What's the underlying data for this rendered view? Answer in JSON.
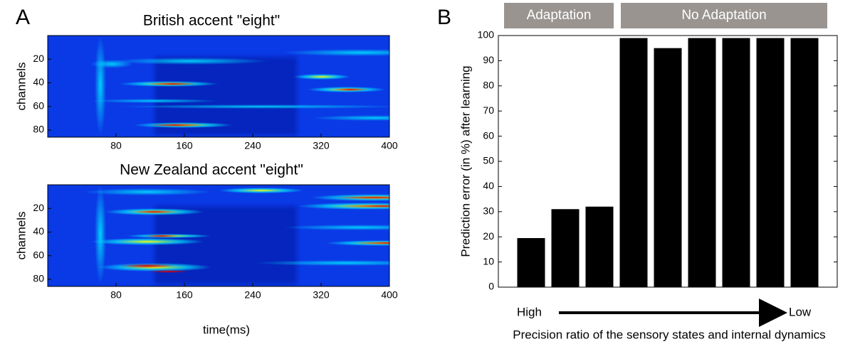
{
  "panel_labels": [
    "A",
    "B"
  ],
  "chart_data": [
    {
      "type": "heatmap",
      "title": "British accent \"eight\"",
      "ylabel": "channels",
      "xlim": [
        0,
        400
      ],
      "xticks": [
        80,
        160,
        240,
        320,
        400
      ],
      "ylim": [
        0,
        86
      ],
      "yticks": [
        20,
        40,
        60,
        80
      ],
      "y_inverted": true,
      "colormap": "jet"
    },
    {
      "type": "heatmap",
      "title": "New Zealand accent \"eight\"",
      "ylabel": "channels",
      "xlabel": "time(ms)",
      "xlim": [
        0,
        400
      ],
      "xticks": [
        80,
        160,
        240,
        320,
        400
      ],
      "ylim": [
        0,
        86
      ],
      "yticks": [
        20,
        40,
        60,
        80
      ],
      "y_inverted": true,
      "colormap": "jet"
    },
    {
      "type": "bar",
      "ylabel": "Prediction error (in %) after learning",
      "xlabel": "Precision ratio of the sensory states and internal dynamics",
      "categories": [
        null,
        null,
        null,
        null,
        null,
        null,
        null,
        null,
        null
      ],
      "values": [
        19.5,
        31,
        32,
        99,
        95,
        99,
        99,
        99,
        99
      ],
      "color": "#000000",
      "ylim": [
        0,
        100
      ],
      "yticks": [
        0,
        10,
        20,
        30,
        40,
        50,
        60,
        70,
        80,
        90,
        100
      ],
      "annotations": [
        "Adaptation",
        "No Adaptation",
        "High",
        "Low"
      ]
    }
  ]
}
